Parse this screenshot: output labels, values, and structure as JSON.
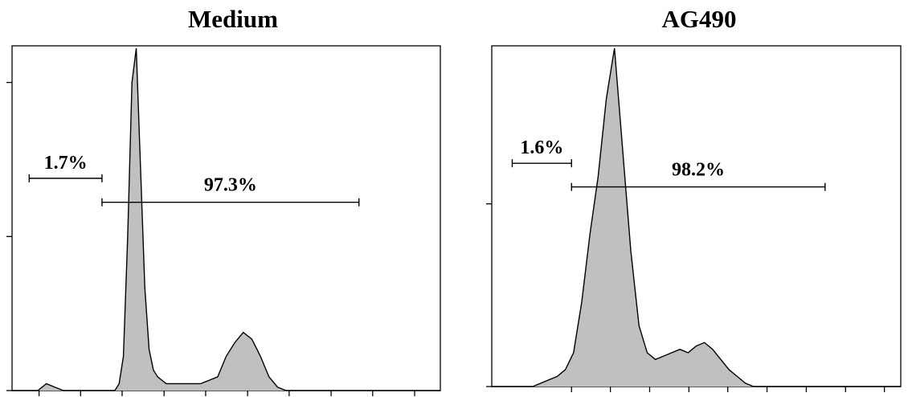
{
  "chart_data": [
    {
      "type": "area",
      "title": "Medium",
      "xlabel": "",
      "ylabel": "",
      "x_range": [
        0,
        1000
      ],
      "y_range": [
        0,
        100
      ],
      "grid": false,
      "histogram": {
        "x": [
          0,
          20,
          40,
          60,
          80,
          100,
          120,
          140,
          160,
          180,
          200,
          220,
          240,
          250,
          260,
          270,
          280,
          290,
          300,
          310,
          320,
          330,
          340,
          350,
          360,
          380,
          400,
          420,
          440,
          460,
          480,
          500,
          520,
          540,
          560,
          580,
          600,
          620,
          640,
          660,
          680,
          700,
          720,
          740,
          760,
          780,
          800,
          820,
          840,
          860,
          880,
          900,
          920,
          940,
          960,
          980,
          1000
        ],
        "y": [
          0,
          0,
          0,
          0,
          2,
          1,
          0,
          0,
          0,
          0,
          0,
          0,
          0,
          2,
          10,
          45,
          90,
          100,
          65,
          30,
          12,
          6,
          4,
          3,
          2,
          2,
          2,
          2,
          2,
          3,
          4,
          10,
          14,
          17,
          15,
          10,
          4,
          1,
          0,
          0,
          0,
          0,
          0,
          0,
          0,
          0,
          0,
          0,
          0,
          0,
          0,
          0,
          0,
          0,
          0,
          0,
          0
        ]
      },
      "gates": [
        {
          "label": "1.7%",
          "from": 40,
          "to": 210,
          "y": 62
        },
        {
          "label": "97.3%",
          "from": 210,
          "to": 810,
          "y": 55
        }
      ]
    },
    {
      "type": "area",
      "title": "AG490",
      "xlabel": "",
      "ylabel": "",
      "x_range": [
        0,
        1000
      ],
      "y_range": [
        0,
        100
      ],
      "grid": false,
      "histogram": {
        "x": [
          0,
          20,
          40,
          60,
          80,
          100,
          120,
          140,
          160,
          180,
          200,
          220,
          240,
          260,
          280,
          300,
          320,
          340,
          360,
          380,
          400,
          420,
          440,
          460,
          480,
          500,
          520,
          540,
          560,
          580,
          600,
          620,
          640,
          660,
          680,
          700,
          720,
          740,
          760,
          780,
          800,
          820,
          840,
          860,
          880,
          900,
          920,
          940,
          960,
          980,
          1000
        ],
        "y": [
          0,
          0,
          0,
          0,
          0,
          0,
          1,
          2,
          3,
          5,
          10,
          25,
          45,
          62,
          85,
          100,
          70,
          40,
          18,
          10,
          8,
          9,
          10,
          11,
          10,
          12,
          13,
          11,
          8,
          5,
          3,
          1,
          0,
          0,
          0,
          0,
          0,
          0,
          0,
          0,
          0,
          0,
          0,
          0,
          0,
          0,
          0,
          0,
          0,
          0,
          0
        ]
      },
      "gates": [
        {
          "label": "1.6%",
          "from": 50,
          "to": 195,
          "y": 66
        },
        {
          "label": "98.2%",
          "from": 195,
          "to": 815,
          "y": 59
        }
      ]
    }
  ]
}
